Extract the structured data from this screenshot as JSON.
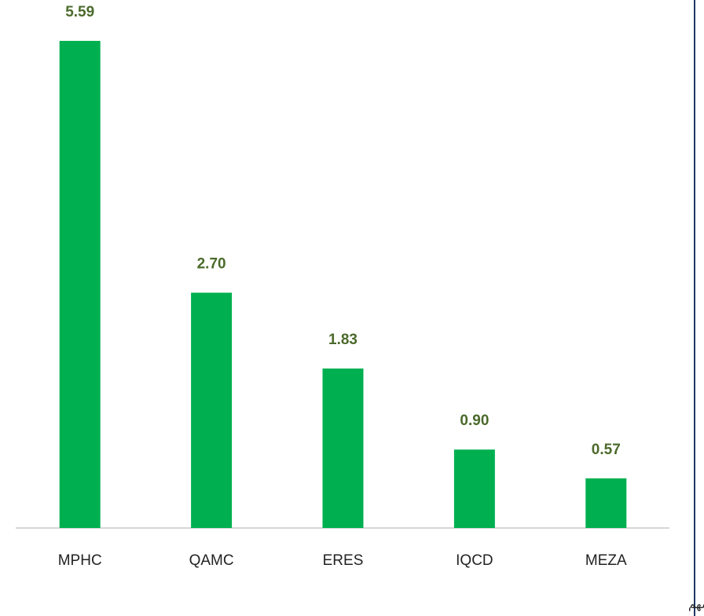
{
  "chart_data": {
    "type": "bar",
    "categories": [
      "MPHC",
      "QAMC",
      "ERES",
      "IQCD",
      "MEZA"
    ],
    "values": [
      5.59,
      2.7,
      1.83,
      0.9,
      0.57
    ],
    "value_labels": [
      "5.59",
      "2.70",
      "1.83",
      "0.90",
      "0.57"
    ],
    "color": "#00b050",
    "annotation": "مليون سهم"
  }
}
